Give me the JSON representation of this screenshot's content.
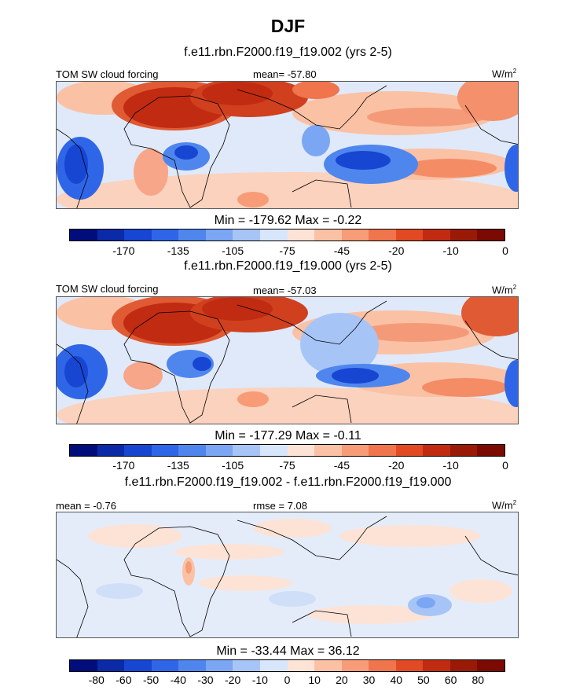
{
  "main_title": "DJF",
  "panels": [
    {
      "title": "f.e11.rbn.F2000.f19_f19.002 (yrs 2-5)",
      "left_label": "TOM SW cloud forcing",
      "center_label": "mean= -57.80",
      "units": "W/m",
      "units_sup": "2",
      "minmax": "Min = -179.62 Max =  -0.22",
      "colorbar_labels": [
        "-170",
        "-135",
        "-105",
        "-75",
        "-45",
        "-20",
        "-10",
        "0"
      ]
    },
    {
      "title": "f.e11.rbn.F2000.f19_f19.000 (yrs 2-5)",
      "left_label": "TOM SW cloud forcing",
      "center_label": "mean= -57.03",
      "units": "W/m",
      "units_sup": "2",
      "minmax": "Min = -177.29 Max =  -0.11",
      "colorbar_labels": [
        "-170",
        "-135",
        "-105",
        "-75",
        "-45",
        "-20",
        "-10",
        "0"
      ]
    },
    {
      "title": "f.e11.rbn.F2000.f19_f19.002 - f.e11.rbn.F2000.f19_f19.000",
      "left_label": "mean =  -0.76",
      "center_label": "rmse =   7.08",
      "units": "W/m",
      "units_sup": "2",
      "minmax": "Min = -33.44 Max =  36.12",
      "colorbar_labels": [
        "-80",
        "-60",
        "-50",
        "-40",
        "-30",
        "-20",
        "-10",
        "0",
        "10",
        "20",
        "30",
        "40",
        "50",
        "60",
        "80"
      ]
    }
  ],
  "colors": {
    "abs_scale": [
      "#000d7a",
      "#0a2aa8",
      "#1646d2",
      "#2f66e8",
      "#4f86ee",
      "#7aa6f4",
      "#a7c4f7",
      "#d8e6fb",
      "#fde3d6",
      "#fbc1a5",
      "#f79c77",
      "#f0744c",
      "#e14a23",
      "#c12b12",
      "#9a1a08",
      "#7a0a02"
    ],
    "diff_scale": [
      "#000d7a",
      "#0a2aa8",
      "#1646d2",
      "#2f66e8",
      "#4f86ee",
      "#7aa6f4",
      "#a7c4f7",
      "#d8e6fb",
      "#fde3d6",
      "#fbc1a5",
      "#f79c77",
      "#f0744c",
      "#e14a23",
      "#c12b12",
      "#9a1a08",
      "#7a0a02"
    ]
  }
}
